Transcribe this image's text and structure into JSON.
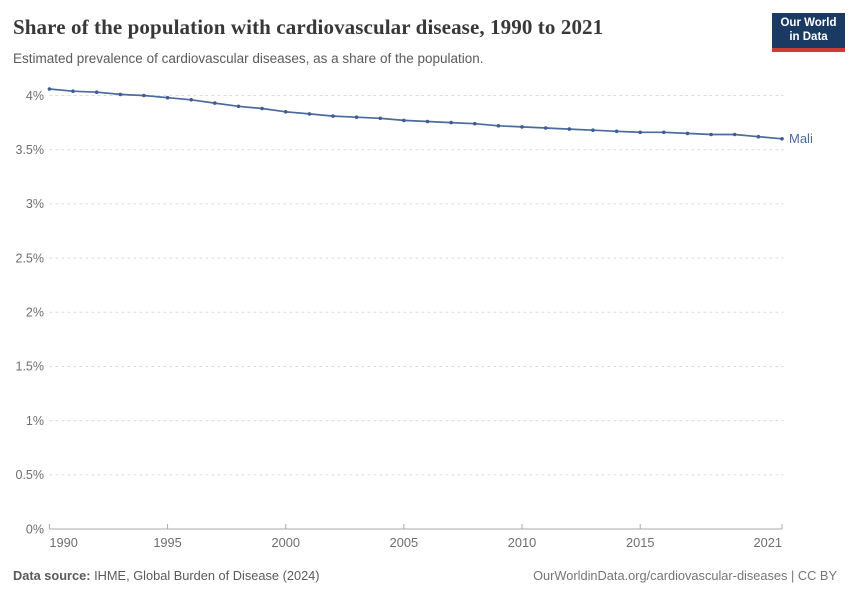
{
  "header": {
    "title": "Share of the population with cardiovascular disease, 1990 to 2021",
    "subtitle": "Estimated prevalence of cardiovascular diseases, as a share of the population.",
    "logo": {
      "line1": "Our World",
      "line2": "in Data",
      "navy": "#1a3a63",
      "red": "#cb3d33"
    }
  },
  "chart_data": {
    "type": "line",
    "title": "Share of the population with cardiovascular disease, 1990 to 2021",
    "xlabel": "",
    "ylabel": "",
    "xlim": [
      1990,
      2021
    ],
    "ylim": [
      0,
      4
    ],
    "grid": "horizontal-dashed",
    "legend_position": "end-of-line",
    "x": [
      1990,
      1991,
      1992,
      1993,
      1994,
      1995,
      1996,
      1997,
      1998,
      1999,
      2000,
      2001,
      2002,
      2003,
      2004,
      2005,
      2006,
      2007,
      2008,
      2009,
      2010,
      2011,
      2012,
      2013,
      2014,
      2015,
      2016,
      2017,
      2018,
      2019,
      2020,
      2021
    ],
    "series": [
      {
        "name": "Mali",
        "color": "#4c6a9c",
        "point_color": "#3d5d96",
        "values": [
          4.06,
          4.04,
          4.03,
          4.01,
          4.0,
          3.98,
          3.96,
          3.93,
          3.9,
          3.88,
          3.85,
          3.83,
          3.81,
          3.8,
          3.79,
          3.77,
          3.76,
          3.75,
          3.74,
          3.72,
          3.71,
          3.7,
          3.69,
          3.68,
          3.67,
          3.66,
          3.66,
          3.65,
          3.64,
          3.64,
          3.62,
          3.6
        ]
      }
    ],
    "xticks": [
      1990,
      1995,
      2000,
      2005,
      2010,
      2015,
      2021
    ],
    "yticks": [
      0,
      0.5,
      1,
      1.5,
      2,
      2.5,
      3,
      3.5,
      4
    ],
    "ytick_labels": [
      "0%",
      "0.5%",
      "1%",
      "1.5%",
      "2%",
      "2.5%",
      "3%",
      "3.5%",
      "4%"
    ],
    "entity_label": "Mali"
  },
  "footer": {
    "source_label": "Data source:",
    "source_text": " IHME, Global Burden of Disease (2024)",
    "rights": "OurWorldinData.org/cardiovascular-diseases | CC BY"
  }
}
